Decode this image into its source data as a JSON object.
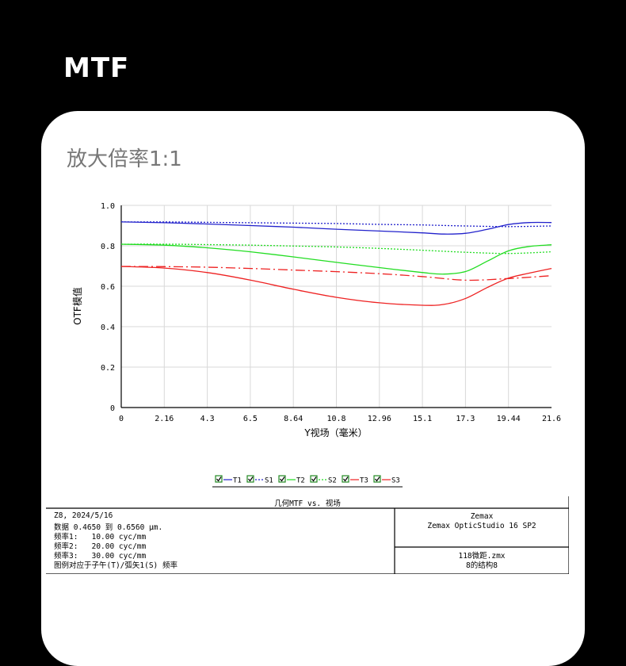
{
  "header": {
    "title": "MTF"
  },
  "card": {
    "title": "放大倍率1:1"
  },
  "chart_data": {
    "type": "line",
    "ylabel": "OTF模值",
    "xlabel": "Y视场（毫米）",
    "x_ticks": [
      "0",
      "2.16",
      "4.3",
      "6.5",
      "8.64",
      "10.8",
      "12.96",
      "15.1",
      "17.3",
      "19.44",
      "21.6"
    ],
    "y_ticks": [
      "0",
      "0.2",
      "0.4",
      "0.6",
      "0.8",
      "1.0"
    ],
    "xlim": [
      0,
      21.6
    ],
    "ylim": [
      0,
      1.0
    ],
    "grid": true,
    "series": [
      {
        "name": "T1",
        "color": "#2222cc",
        "dash": "solid",
        "x": [
          0,
          2.16,
          4.3,
          6.5,
          8.64,
          10.8,
          12.96,
          15.1,
          16.2,
          17.3,
          18.4,
          19.44,
          20.5,
          21.6
        ],
        "y": [
          0.918,
          0.914,
          0.908,
          0.9,
          0.892,
          0.882,
          0.873,
          0.864,
          0.858,
          0.862,
          0.882,
          0.905,
          0.915,
          0.915
        ]
      },
      {
        "name": "S1",
        "color": "#2222cc",
        "dash": "dotted",
        "x": [
          0,
          2.16,
          4.3,
          6.5,
          8.64,
          10.8,
          12.96,
          15.1,
          17.3,
          19.44,
          21.6
        ],
        "y": [
          0.918,
          0.918,
          0.916,
          0.914,
          0.912,
          0.91,
          0.906,
          0.903,
          0.898,
          0.895,
          0.898
        ]
      },
      {
        "name": "T2",
        "color": "#22dd22",
        "dash": "solid",
        "x": [
          0,
          2.16,
          4.3,
          6.5,
          8.64,
          10.8,
          12.96,
          15.1,
          16.2,
          17.3,
          18.4,
          19.44,
          20.5,
          21.6
        ],
        "y": [
          0.808,
          0.803,
          0.79,
          0.77,
          0.745,
          0.718,
          0.692,
          0.668,
          0.66,
          0.673,
          0.725,
          0.775,
          0.797,
          0.805
        ]
      },
      {
        "name": "S2",
        "color": "#22dd22",
        "dash": "dotted",
        "x": [
          0,
          2.16,
          4.3,
          6.5,
          8.64,
          10.8,
          12.96,
          15.1,
          17.3,
          19.44,
          21.6
        ],
        "y": [
          0.808,
          0.808,
          0.806,
          0.803,
          0.799,
          0.794,
          0.787,
          0.778,
          0.768,
          0.762,
          0.77
        ]
      },
      {
        "name": "T3",
        "color": "#ee2222",
        "dash": "solid",
        "x": [
          0,
          2.16,
          4.3,
          6.5,
          8.64,
          10.8,
          12.96,
          15.1,
          16.2,
          17.3,
          18.4,
          19.44,
          20.5,
          21.6
        ],
        "y": [
          0.698,
          0.69,
          0.668,
          0.63,
          0.585,
          0.545,
          0.518,
          0.506,
          0.51,
          0.54,
          0.595,
          0.64,
          0.665,
          0.688
        ]
      },
      {
        "name": "S3",
        "color": "#ee2222",
        "dash": "dashdot",
        "x": [
          0,
          2.16,
          4.3,
          6.5,
          8.64,
          10.8,
          12.96,
          15.1,
          17.3,
          19.44,
          21.6
        ],
        "y": [
          0.698,
          0.697,
          0.694,
          0.688,
          0.68,
          0.672,
          0.662,
          0.648,
          0.63,
          0.638,
          0.652
        ]
      }
    ]
  },
  "legend": {
    "items": [
      "T1",
      "S1",
      "T2",
      "S2",
      "T3",
      "S3"
    ]
  },
  "infobox": {
    "title": "几何MTF vs. 视场",
    "left_lines": [
      "Z8, 2024/5/16",
      "数据 0.4650 到 0.6560 μm.",
      "频率1:   10.00 cyc/mm",
      "频率2:   20.00 cyc/mm",
      "频率3:   30.00 cyc/mm",
      "图例对应于子午(T)/弧矢1(S) 频率"
    ],
    "right_top": [
      "Zemax",
      "Zemax OpticStudio 16 SP2"
    ],
    "right_bottom": [
      "118微距.zmx",
      "8的结构8"
    ]
  }
}
